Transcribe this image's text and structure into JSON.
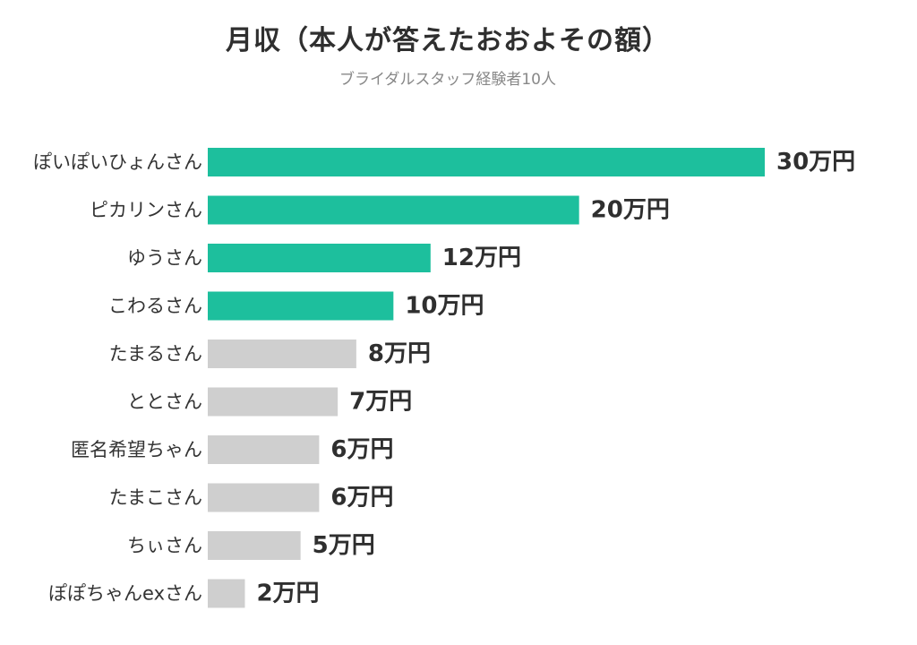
{
  "chart_data": {
    "type": "bar",
    "orientation": "horizontal",
    "title": "月収（本人が答えたおおよその額）",
    "subtitle": "ブライダルスタッフ経験者10人",
    "categories": [
      "ぽいぽいひょんさん",
      "ピカリンさん",
      "ゆうさん",
      "こわるさん",
      "たまるさん",
      "ととさん",
      "匿名希望ちゃん",
      "たまこさん",
      "ちぃさん",
      "ぽぽちゃんexさん"
    ],
    "values": [
      30,
      20,
      12,
      10,
      8,
      7,
      6,
      6,
      5,
      2
    ],
    "value_labels": [
      "30万円",
      "20万円",
      "12万円",
      "10万円",
      "8万円",
      "7万円",
      "6万円",
      "6万円",
      "5万円",
      "2万円"
    ],
    "colors": {
      "highlight": "#1dbf9d",
      "normal": "#cfcfcf"
    },
    "highlighted_count": 4,
    "xlim": [
      0,
      30
    ],
    "grid": false,
    "legend": "none"
  }
}
